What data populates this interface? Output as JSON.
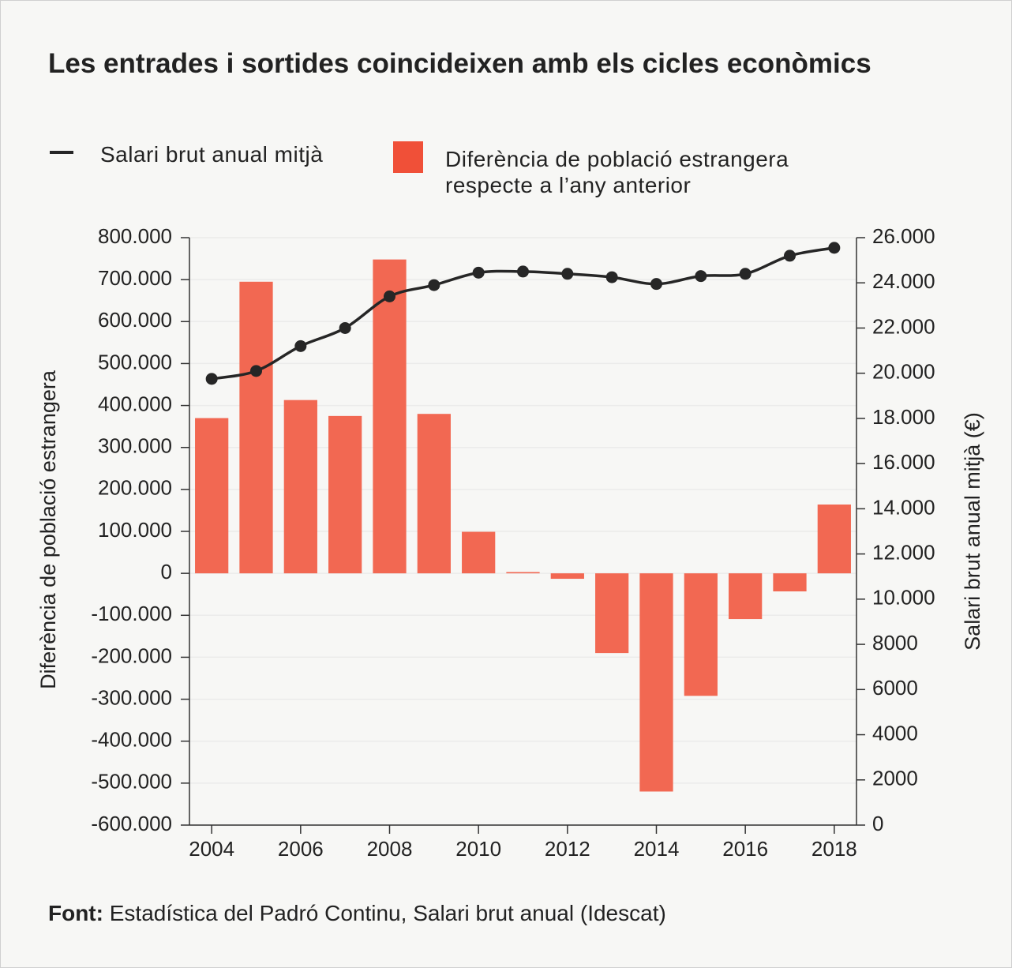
{
  "chart_data": {
    "type": "bar",
    "title": "Les entrades i sortides coincideixen amb els cicles econòmics",
    "ylabel": "Diferència de població estrangera",
    "y2label": "Salari brut anual mitjà (€)",
    "source_label": "Font:",
    "source": "Estadística del Padró Continu, Salari brut anual (Idescat)",
    "x": [
      2004,
      2005,
      2006,
      2007,
      2008,
      2009,
      2010,
      2011,
      2012,
      2013,
      2014,
      2015,
      2016,
      2017,
      2018
    ],
    "xlim": [
      2003.5,
      2018.5
    ],
    "xticks": [
      2004,
      2006,
      2008,
      2010,
      2012,
      2014,
      2016,
      2018
    ],
    "ylim": [
      -600000,
      800000
    ],
    "yticks": [
      {
        "value": -600000,
        "label": "-600.000"
      },
      {
        "value": -500000,
        "label": "-500.000"
      },
      {
        "value": -400000,
        "label": "-400.000"
      },
      {
        "value": -300000,
        "label": "-300.000"
      },
      {
        "value": -200000,
        "label": "-200.000"
      },
      {
        "value": -100000,
        "label": "-100.000"
      },
      0,
      {
        "value": 100000,
        "label": "100.000"
      },
      {
        "value": 200000,
        "label": "200.000"
      },
      {
        "value": 300000,
        "label": "300.000"
      },
      {
        "value": 400000,
        "label": "400.000"
      },
      {
        "value": 500000,
        "label": "500.000"
      },
      {
        "value": 600000,
        "label": "600.000"
      },
      {
        "value": 700000,
        "label": "700.000"
      },
      {
        "value": 800000,
        "label": "800.000"
      }
    ],
    "y2lim": [
      0,
      26000
    ],
    "y2ticks": [
      0,
      2000,
      4000,
      6000,
      8000,
      {
        "value": 10000,
        "label": "10.000"
      },
      {
        "value": 12000,
        "label": "12.000"
      },
      {
        "value": 14000,
        "label": "14.000"
      },
      {
        "value": 16000,
        "label": "16.000"
      },
      {
        "value": 18000,
        "label": "18.000"
      },
      {
        "value": 20000,
        "label": "20.000"
      },
      {
        "value": 22000,
        "label": "22.000"
      },
      {
        "value": 24000,
        "label": "24.000"
      },
      {
        "value": 26000,
        "label": "26.000"
      }
    ],
    "grid": true,
    "series": [
      {
        "name": "Salari brut anual mitjà",
        "type": "line",
        "axis": "y2",
        "color": "#262626",
        "values": [
          19750,
          20100,
          21200,
          22000,
          23400,
          23900,
          24450,
          24500,
          24400,
          24250,
          23950,
          24300,
          24400,
          25200,
          25550
        ]
      },
      {
        "name": "Diferència de població estrangera respecte a l’any anterior",
        "type": "bar",
        "color": "#f26852",
        "values": [
          370000,
          695000,
          413000,
          375000,
          748000,
          380000,
          99000,
          3000,
          -13000,
          -190000,
          -520000,
          -292000,
          -109000,
          -43000,
          164000
        ]
      }
    ]
  }
}
